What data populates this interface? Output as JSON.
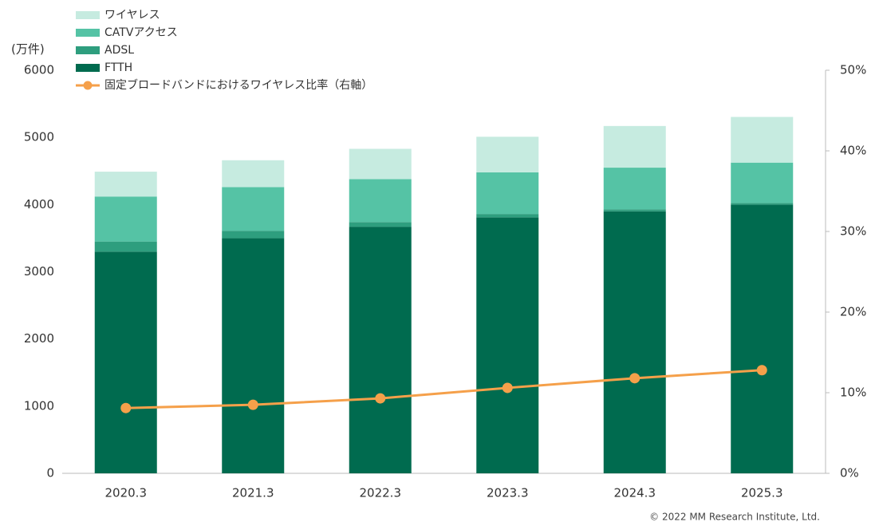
{
  "chart_data": {
    "type": "bar",
    "stacked": true,
    "y_label": "(万件)",
    "note": "© 2022 MM Research Institute, Ltd.",
    "categories": [
      "2020.3",
      "2021.3",
      "2022.3",
      "2023.3",
      "2024.3",
      "2025.3"
    ],
    "series": [
      {
        "name": "FTTH",
        "color": "#006b4f",
        "values": [
          3300,
          3500,
          3670,
          3810,
          3900,
          4000
        ]
      },
      {
        "name": "ADSL",
        "color": "#2e9e7e",
        "values": [
          150,
          110,
          70,
          50,
          30,
          25
        ]
      },
      {
        "name": "CATVアクセス",
        "color": "#55c3a5",
        "values": [
          670,
          650,
          640,
          620,
          620,
          600
        ]
      },
      {
        "name": "ワイヤレス",
        "color": "#c6ebe0",
        "values": [
          370,
          400,
          450,
          530,
          620,
          680
        ]
      },
      {
        "name": "固定ブロードバンドにおけるワイヤレス比率（右軸）",
        "color": "#f5a04a",
        "type": "line",
        "axis": "y2",
        "values": [
          8.1,
          8.5,
          9.3,
          10.6,
          11.8,
          12.8
        ]
      }
    ],
    "ylim": [
      0,
      6000
    ],
    "yticks": [
      0,
      1000,
      2000,
      3000,
      4000,
      5000,
      6000
    ],
    "y2lim": [
      0,
      50
    ],
    "y2ticks": [
      {
        "value": 0,
        "label": "0%"
      },
      {
        "value": 10,
        "label": "10%"
      },
      {
        "value": 20,
        "label": "20%"
      },
      {
        "value": 30,
        "label": "30%"
      },
      {
        "value": 40,
        "label": "40%"
      },
      {
        "value": 50,
        "label": "50%"
      }
    ],
    "grid": false
  }
}
